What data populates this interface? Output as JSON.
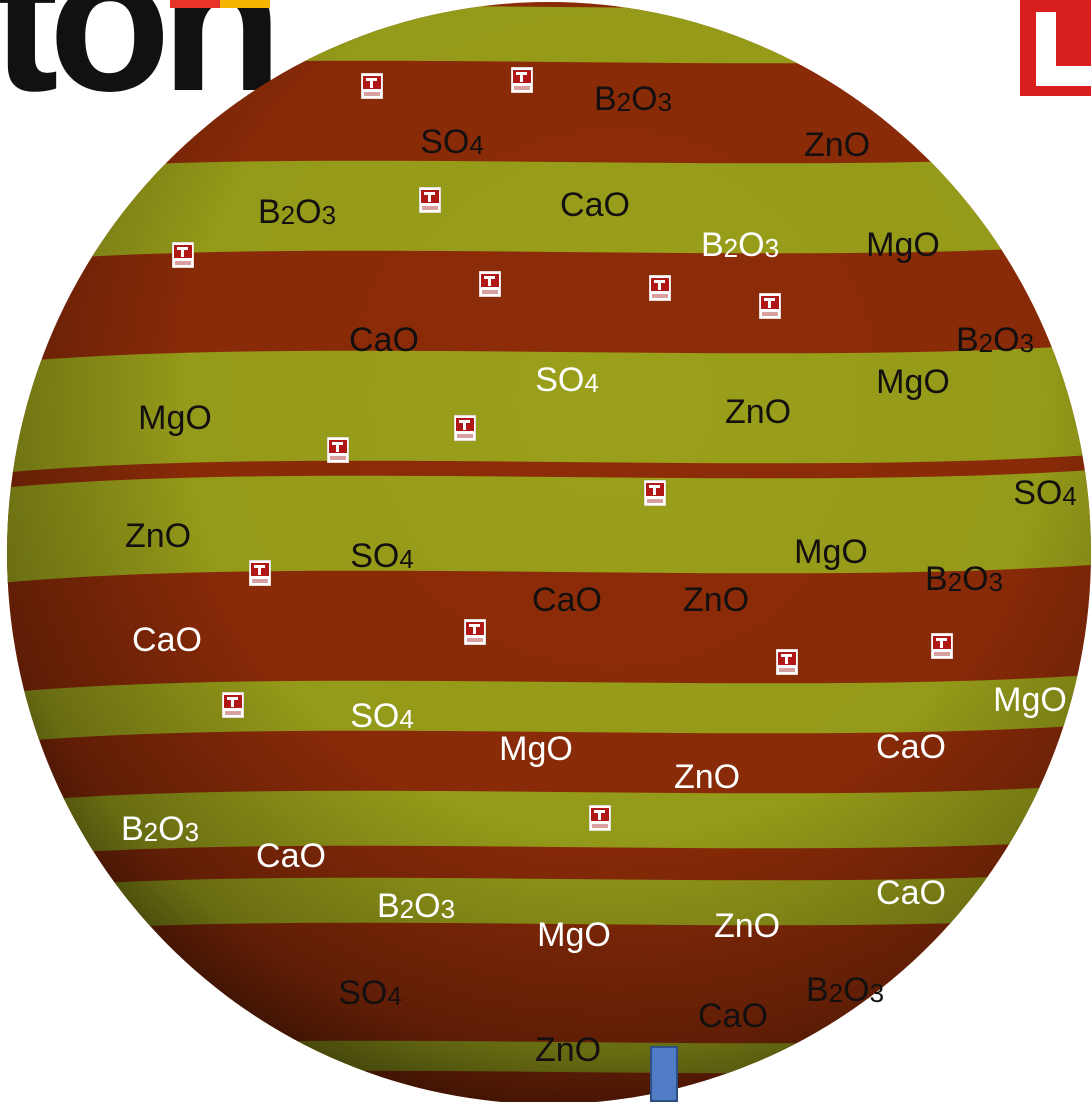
{
  "logo": {
    "text": "ton",
    "bar_colors": [
      "#e8332a",
      "#f5b400"
    ],
    "corner_color": "#d91e1e"
  },
  "sphere": {
    "band_colors": {
      "dark": "#8e2c08",
      "light": "#9aa01a",
      "edge": "#2a0a00"
    }
  },
  "tag_icon": "r-logo-tag-icon",
  "labels": [
    {
      "text": "SO4",
      "tone": "dark"
    },
    {
      "text": "B2O3",
      "tone": "dark"
    },
    {
      "text": "ZnO",
      "tone": "dark"
    },
    {
      "text": "B2O3",
      "tone": "dark"
    },
    {
      "text": "CaO",
      "tone": "dark"
    },
    {
      "text": "B2O3",
      "tone": "light"
    },
    {
      "text": "MgO",
      "tone": "dark"
    },
    {
      "text": "CaO",
      "tone": "dark"
    },
    {
      "text": "B2O3",
      "tone": "dark"
    },
    {
      "text": "SO4",
      "tone": "light"
    },
    {
      "text": "MgO",
      "tone": "dark"
    },
    {
      "text": "MgO",
      "tone": "dark"
    },
    {
      "text": "ZnO",
      "tone": "dark"
    },
    {
      "text": "SO4",
      "tone": "dark"
    },
    {
      "text": "ZnO",
      "tone": "dark"
    },
    {
      "text": "SO4",
      "tone": "dark"
    },
    {
      "text": "MgO",
      "tone": "dark"
    },
    {
      "text": "B2O3",
      "tone": "dark"
    },
    {
      "text": "CaO",
      "tone": "dark"
    },
    {
      "text": "ZnO",
      "tone": "dark"
    },
    {
      "text": "CaO",
      "tone": "light"
    },
    {
      "text": "MgO",
      "tone": "light"
    },
    {
      "text": "SO4",
      "tone": "light"
    },
    {
      "text": "MgO",
      "tone": "light"
    },
    {
      "text": "CaO",
      "tone": "light"
    },
    {
      "text": "ZnO",
      "tone": "light"
    },
    {
      "text": "B2O3",
      "tone": "light"
    },
    {
      "text": "CaO",
      "tone": "light"
    },
    {
      "text": "B2O3",
      "tone": "light"
    },
    {
      "text": "CaO",
      "tone": "light"
    },
    {
      "text": "MgO",
      "tone": "light"
    },
    {
      "text": "ZnO",
      "tone": "light"
    },
    {
      "text": "SO4",
      "tone": "dark"
    },
    {
      "text": "B2O3",
      "tone": "dark"
    },
    {
      "text": "CaO",
      "tone": "dark"
    },
    {
      "text": "ZnO",
      "tone": "dark"
    }
  ]
}
